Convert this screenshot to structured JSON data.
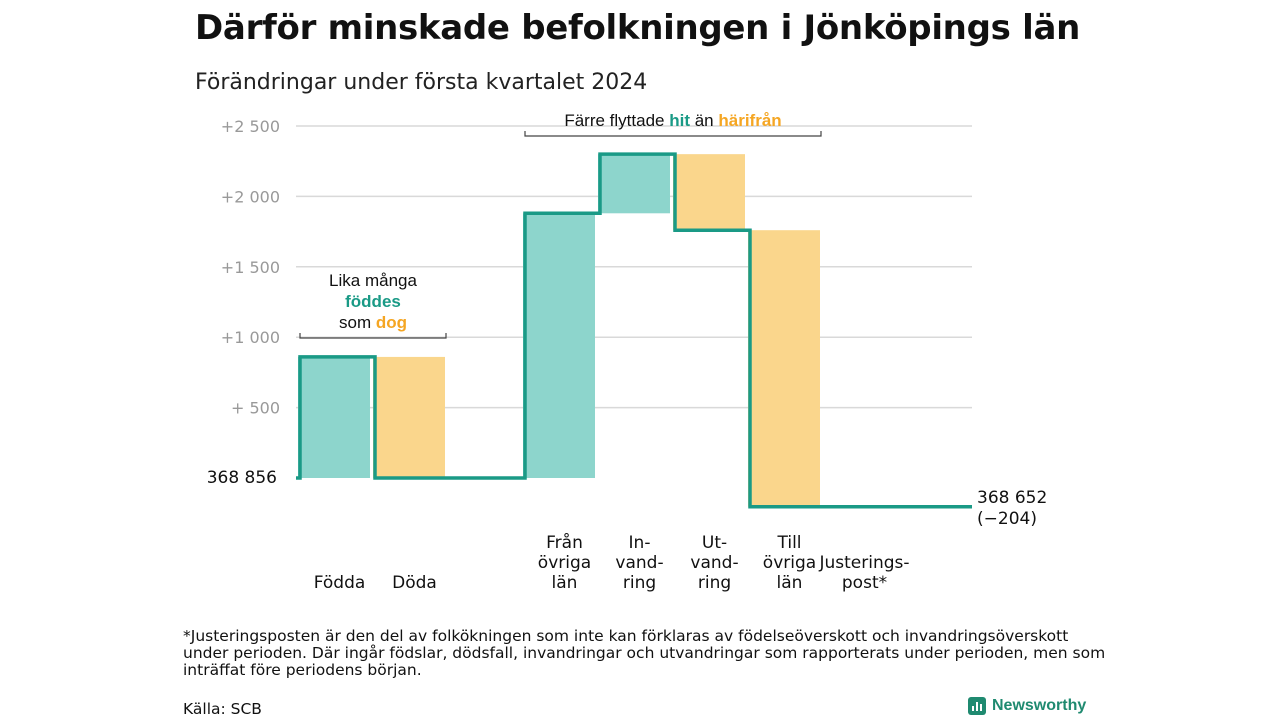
{
  "title": "Därför minskade befolkningen i Jönköpings län",
  "subtitle": "Förändringar under första kvartalet 2024",
  "colors": {
    "teal": "#1a9a86",
    "teal_fill": "#8dd5cc",
    "orange": "#f5a623",
    "orange_fill": "#fad68c",
    "grid": "#d9d9d9",
    "axis_text": "#999999"
  },
  "chart_data": {
    "type": "waterfall",
    "baseline": 368856,
    "baseline_label": "368  856",
    "end_label_value": "368 652",
    "end_label_change": "(−204)",
    "ylim": [
      -400,
      2500
    ],
    "yticks": [
      {
        "value": 500,
        "label": "+  500"
      },
      {
        "value": 1000,
        "label": "+1  000"
      },
      {
        "value": 1500,
        "label": "+1  500"
      },
      {
        "value": 2000,
        "label": "+2  000"
      },
      {
        "value": 2500,
        "label": "+2  500"
      }
    ],
    "steps": [
      {
        "label": [
          "Födda"
        ],
        "change": 860,
        "kind": "in"
      },
      {
        "label": [
          "Döda"
        ],
        "change": -860,
        "kind": "out"
      },
      {
        "label": [],
        "change": 0,
        "kind": "gap"
      },
      {
        "label": [
          "Från",
          "övriga",
          "län"
        ],
        "change": 1880,
        "kind": "in"
      },
      {
        "label": [
          "In-",
          "vand-",
          "ring"
        ],
        "change": 420,
        "kind": "in"
      },
      {
        "label": [
          "Ut-",
          "vand-",
          "ring"
        ],
        "change": -540,
        "kind": "out"
      },
      {
        "label": [
          "Till",
          "övriga",
          "län"
        ],
        "change": -1964,
        "kind": "out"
      },
      {
        "label": [
          "Justerings-",
          "post*"
        ],
        "change": 0,
        "kind": "adjust"
      }
    ],
    "annotations": [
      {
        "lines": [
          [
            {
              "t": "Lika många",
              "c": "plain"
            }
          ],
          [
            {
              "t": "föddes",
              "c": "teal"
            }
          ],
          [
            {
              "t": "som ",
              "c": "plain"
            },
            {
              "t": "dog",
              "c": "orange"
            }
          ]
        ],
        "from_step": 0,
        "to_step": 1
      },
      {
        "lines": [
          [
            {
              "t": "Färre flyttade ",
              "c": "plain"
            },
            {
              "t": "hit",
              "c": "teal"
            },
            {
              "t": " än ",
              "c": "plain"
            },
            {
              "t": "härifrån",
              "c": "orange"
            }
          ]
        ],
        "from_step": 3,
        "to_step": 6
      }
    ]
  },
  "footnote": "*Justeringsposten är den del av folkökningen som inte kan förklaras av födelseöverskott och invandringsöverskott under perioden. Där ingår födslar, dödsfall, invandringar och utvandringar som rapporterats under perioden, men som inträffat före periodens början.",
  "source": "Källa: SCB",
  "brand": {
    "name": "Newsworthy",
    "icon": "bar-chart-logo-icon"
  }
}
